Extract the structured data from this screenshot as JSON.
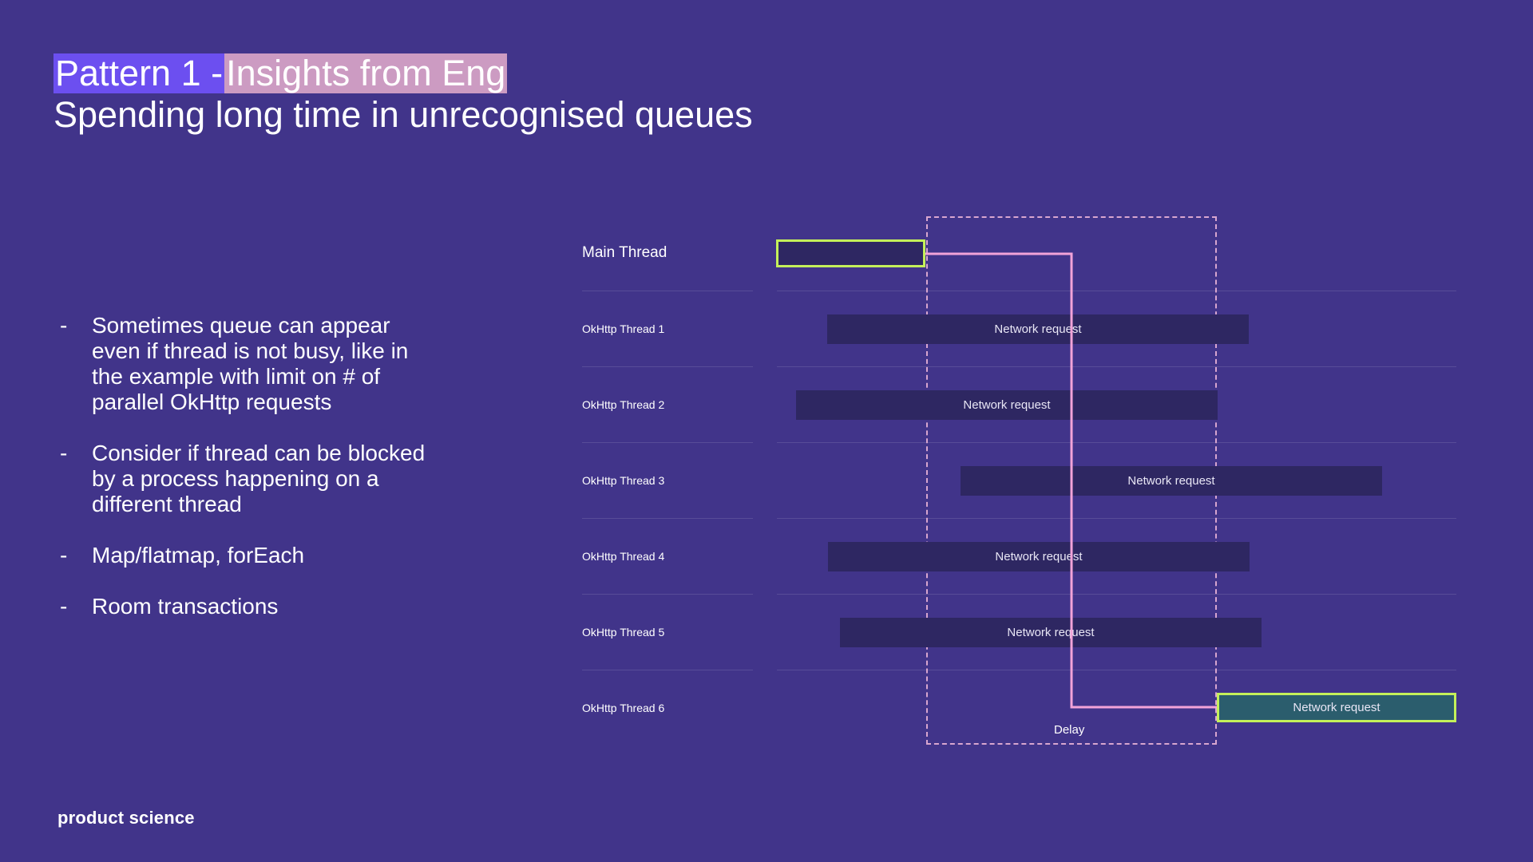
{
  "slide": {
    "title_prefix": "Pattern 1 - ",
    "title_highlight": "Insights from Eng",
    "subtitle": "Spending long time in unrecognised queues",
    "bullets": [
      "Sometimes queue can appear even if thread is not busy, like in the example with limit on # of parallel OkHttp requests",
      "Consider if thread can be blocked by a process happening on a different thread",
      "Map/flatmap, forEach",
      "Room transactions"
    ],
    "bullet_marker": "-",
    "brand": "product science"
  },
  "diagram": {
    "threads": [
      "Main Thread",
      "OkHttp Thread 1",
      "OkHttp Thread 2",
      "OkHttp Thread 3",
      "OkHttp Thread 4",
      "OkHttp Thread 5",
      "OkHttp Thread 6"
    ],
    "bar_label": "Network request",
    "delay_label": "Delay",
    "colors": {
      "background": "#41348a",
      "bar": "#2e2762",
      "highlight_outline": "#c4f05a",
      "highlight_fill": "#2b5d6d",
      "dependency_line": "#f2a3d8",
      "delay_box": "#d8a6cf"
    }
  }
}
